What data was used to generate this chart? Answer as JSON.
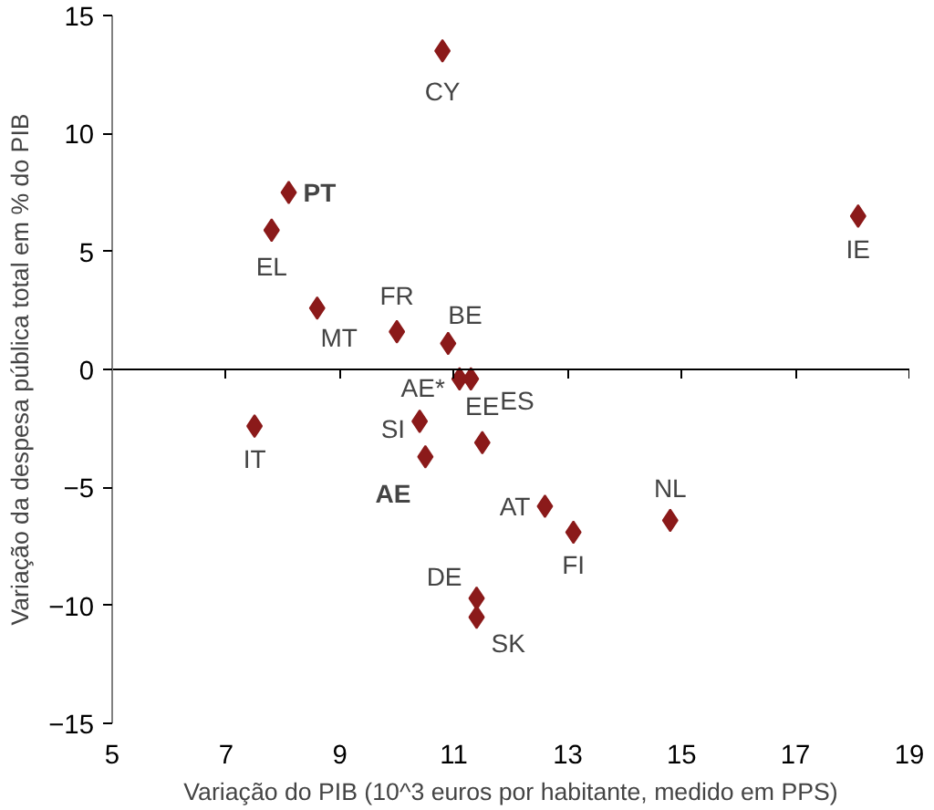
{
  "chart_data": {
    "type": "scatter",
    "xlabel": "Variação do PIB (10^3 euros por habitante, medido em PPS)",
    "ylabel": "Variação da despesa pública total em % do PIB",
    "series": [
      {
        "color": "#8b1a1a",
        "x": [
          10.8,
          8.1,
          7.8,
          8.6,
          10.0,
          10.9,
          11.1,
          11.3,
          10.4,
          10.5,
          11.5,
          7.5,
          18.1,
          12.6,
          13.1,
          14.8,
          11.4,
          11.4
        ],
        "values": [
          13.5,
          7.5,
          5.9,
          2.6,
          1.6,
          1.1,
          -0.4,
          -0.4,
          -2.2,
          -3.7,
          -3.1,
          -2.4,
          6.5,
          -5.8,
          -6.9,
          -6.4,
          -9.7,
          -10.5
        ]
      }
    ],
    "annotations": [
      {
        "text": "CY",
        "x": 10.8,
        "y": 13.5
      },
      {
        "text": "PT",
        "x": 8.1,
        "y": 7.5
      },
      {
        "text": "EL",
        "x": 7.8,
        "y": 5.9
      },
      {
        "text": "MT",
        "x": 8.6,
        "y": 2.6
      },
      {
        "text": "FR",
        "x": 10.0,
        "y": 1.6
      },
      {
        "text": "BE",
        "x": 10.9,
        "y": 1.1
      },
      {
        "text": "AE*",
        "x": 11.1,
        "y": -0.4
      },
      {
        "text": "ES",
        "x": 11.3,
        "y": -0.4
      },
      {
        "text": "SI",
        "x": 10.4,
        "y": -2.2
      },
      {
        "text": "AE",
        "x": 10.5,
        "y": -3.7
      },
      {
        "text": "EE",
        "x": 11.5,
        "y": -3.1
      },
      {
        "text": "IT",
        "x": 7.5,
        "y": -2.4
      },
      {
        "text": "IE",
        "x": 18.1,
        "y": 6.5
      },
      {
        "text": "AT",
        "x": 12.6,
        "y": -5.8
      },
      {
        "text": "FI",
        "x": 13.1,
        "y": -6.9
      },
      {
        "text": "NL",
        "x": 14.8,
        "y": -6.4
      },
      {
        "text": "DE",
        "x": 11.4,
        "y": -9.7
      },
      {
        "text": "SK",
        "x": 11.4,
        "y": -10.5
      }
    ],
    "xlim": [
      5,
      19
    ],
    "xticks": [
      5,
      7,
      9,
      11,
      13,
      15,
      17,
      19
    ],
    "ylim": [
      -15,
      15
    ],
    "yticks": [
      -15,
      -10,
      -5,
      0,
      5,
      10,
      15
    ],
    "marker": "diamond"
  }
}
